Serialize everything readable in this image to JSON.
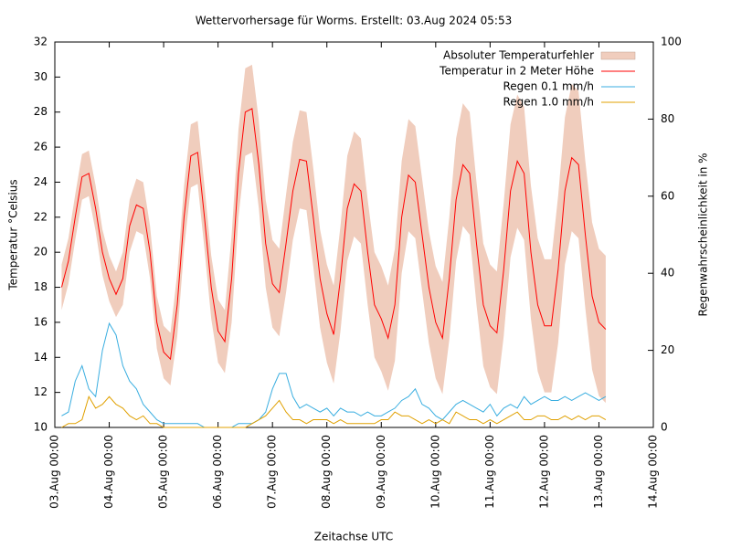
{
  "chart_data": {
    "type": "line",
    "title": "Wettervorhersage für Worms. Erstellt: 03.Aug 2024 05:53",
    "xlabel": "Zeitachse UTC",
    "ylabel": "Temperatur °Celsius",
    "y2label": "Regenwahrscheinlichkeit in %",
    "legend": "top-right",
    "grid": false,
    "xlim": [
      "03.Aug 00:00",
      "14.Aug 00:00"
    ],
    "xticks": [
      "03.Aug 00:00",
      "04.Aug 00:00",
      "05.Aug 00:00",
      "06.Aug 00:00",
      "07.Aug 00:00",
      "08.Aug 00:00",
      "09.Aug 00:00",
      "10.Aug 00:00",
      "11.Aug 00:00",
      "12.Aug 00:00",
      "13.Aug 00:00",
      "14.Aug 00:00"
    ],
    "ylim": [
      10,
      32
    ],
    "yticks": [
      10,
      12,
      14,
      16,
      18,
      20,
      22,
      24,
      26,
      28,
      30,
      32
    ],
    "y2lim": [
      0,
      100
    ],
    "y2ticks": [
      0,
      20,
      40,
      60,
      80,
      100
    ],
    "x": [
      "03.Aug 03:00",
      "03.Aug 06:00",
      "03.Aug 09:00",
      "03.Aug 12:00",
      "03.Aug 15:00",
      "03.Aug 18:00",
      "03.Aug 21:00",
      "04.Aug 00:00",
      "04.Aug 03:00",
      "04.Aug 06:00",
      "04.Aug 09:00",
      "04.Aug 12:00",
      "04.Aug 15:00",
      "04.Aug 18:00",
      "04.Aug 21:00",
      "05.Aug 00:00",
      "05.Aug 03:00",
      "05.Aug 06:00",
      "05.Aug 09:00",
      "05.Aug 12:00",
      "05.Aug 15:00",
      "05.Aug 18:00",
      "05.Aug 21:00",
      "06.Aug 00:00",
      "06.Aug 03:00",
      "06.Aug 06:00",
      "06.Aug 09:00",
      "06.Aug 12:00",
      "06.Aug 15:00",
      "06.Aug 18:00",
      "06.Aug 21:00",
      "07.Aug 00:00",
      "07.Aug 03:00",
      "07.Aug 06:00",
      "07.Aug 09:00",
      "07.Aug 12:00",
      "07.Aug 15:00",
      "07.Aug 18:00",
      "07.Aug 21:00",
      "08.Aug 00:00",
      "08.Aug 03:00",
      "08.Aug 06:00",
      "08.Aug 09:00",
      "08.Aug 12:00",
      "08.Aug 15:00",
      "08.Aug 18:00",
      "08.Aug 21:00",
      "09.Aug 00:00",
      "09.Aug 03:00",
      "09.Aug 06:00",
      "09.Aug 09:00",
      "09.Aug 12:00",
      "09.Aug 15:00",
      "09.Aug 18:00",
      "09.Aug 21:00",
      "10.Aug 00:00",
      "10.Aug 03:00",
      "10.Aug 06:00",
      "10.Aug 09:00",
      "10.Aug 12:00",
      "10.Aug 15:00",
      "10.Aug 18:00",
      "10.Aug 21:00",
      "11.Aug 00:00",
      "11.Aug 03:00",
      "11.Aug 06:00",
      "11.Aug 09:00",
      "11.Aug 12:00",
      "11.Aug 15:00",
      "11.Aug 18:00",
      "11.Aug 21:00",
      "12.Aug 00:00",
      "12.Aug 03:00",
      "12.Aug 06:00",
      "12.Aug 09:00",
      "12.Aug 12:00",
      "12.Aug 15:00",
      "12.Aug 18:00",
      "12.Aug 21:00",
      "13.Aug 00:00",
      "13.Aug 03:00"
    ],
    "series": [
      {
        "name": "Absoluter Temperaturfehler",
        "color": "#f0cdbd",
        "low": [
          16.7,
          18.2,
          20.7,
          23,
          23.2,
          21.2,
          18.7,
          17.2,
          16.3,
          17,
          20,
          21.2,
          21,
          18.5,
          14.5,
          12.8,
          12.4,
          15.2,
          20.2,
          23.7,
          23.9,
          20.2,
          16.2,
          13.7,
          13.1,
          16,
          22,
          25.5,
          25.7,
          22.5,
          18,
          15.7,
          15.2,
          17.7,
          20.7,
          22.5,
          22.4,
          19.2,
          15.7,
          13.7,
          12.5,
          15.5,
          19.5,
          20.9,
          20.5,
          17,
          14,
          13.2,
          12.1,
          13.8,
          18.8,
          21.2,
          20.8,
          17.8,
          14.8,
          12.8,
          11.9,
          15,
          19.5,
          21.5,
          21,
          17,
          13.5,
          12.3,
          11.9,
          15.2,
          19.7,
          21.4,
          20.7,
          16.2,
          13.2,
          12,
          12,
          14.8,
          19.3,
          21.2,
          20.8,
          16.8,
          13.3,
          11.8,
          11.4
        ],
        "high": [
          19.3,
          20.8,
          23.3,
          25.6,
          25.8,
          23.8,
          21.3,
          19.8,
          18.9,
          20,
          23,
          24.2,
          24,
          21.5,
          17.5,
          15.8,
          15.4,
          18.8,
          23.8,
          27.3,
          27.5,
          23.8,
          19.8,
          17.3,
          16.7,
          21,
          27,
          30.5,
          30.7,
          27.5,
          23,
          20.7,
          20.2,
          23.3,
          26.3,
          28.1,
          28,
          24.8,
          21.3,
          19.3,
          18.1,
          21.5,
          25.5,
          26.9,
          26.5,
          23,
          20,
          19.2,
          18.1,
          20.2,
          25.2,
          27.6,
          27.2,
          24.2,
          21.2,
          19.2,
          18.3,
          22,
          26.5,
          28.5,
          28,
          24,
          20.5,
          19.3,
          18.9,
          22.8,
          27.3,
          29,
          28.3,
          23.8,
          20.8,
          19.6,
          19.6,
          23.2,
          27.7,
          29.6,
          29.2,
          25.2,
          21.7,
          20.2,
          19.8
        ]
      },
      {
        "name": "Temperatur in 2 Meter Höhe",
        "color": "#ff0000",
        "values": [
          18,
          19.5,
          22,
          24.3,
          24.5,
          22.5,
          20,
          18.5,
          17.6,
          18.5,
          21.5,
          22.7,
          22.5,
          20,
          16,
          14.3,
          13.9,
          17,
          22,
          25.5,
          25.7,
          22,
          18,
          15.5,
          14.9,
          18.5,
          24.5,
          28,
          28.2,
          25,
          20.5,
          18.2,
          17.7,
          20.5,
          23.5,
          25.3,
          25.2,
          22,
          18.5,
          16.5,
          15.3,
          18.5,
          22.5,
          23.9,
          23.5,
          20,
          17,
          16.2,
          15.1,
          17,
          22,
          24.4,
          24,
          21,
          18,
          16,
          15.1,
          18.5,
          23,
          25,
          24.5,
          20.5,
          17,
          15.8,
          15.4,
          19,
          23.5,
          25.2,
          24.5,
          20,
          17,
          15.8,
          15.8,
          19,
          23.5,
          25.4,
          25,
          21,
          17.5,
          16,
          15.6
        ]
      },
      {
        "name": "Regen 0.1 mm/h",
        "color": "#3aaee0",
        "axis": "y2",
        "values": [
          3,
          4,
          12,
          16,
          10,
          8,
          20,
          27,
          24,
          16,
          12,
          10,
          6,
          4,
          2,
          1,
          1,
          1,
          1,
          1,
          1,
          0,
          0,
          0,
          0,
          0,
          1,
          1,
          1,
          2,
          4,
          10,
          14,
          14,
          8,
          5,
          6,
          5,
          4,
          5,
          3,
          5,
          4,
          4,
          3,
          4,
          3,
          3,
          4,
          5,
          7,
          8,
          10,
          6,
          5,
          3,
          2,
          4,
          6,
          7,
          6,
          5,
          4,
          6,
          3,
          5,
          6,
          5,
          8,
          6,
          7,
          8,
          7,
          7,
          8,
          7,
          8,
          9,
          8,
          7,
          8
        ]
      },
      {
        "name": "Regen 1.0 mm/h",
        "color": "#e0a000",
        "axis": "y2",
        "values": [
          0,
          1,
          1,
          2,
          8,
          5,
          6,
          8,
          6,
          5,
          3,
          2,
          3,
          1,
          1,
          0,
          0,
          0,
          0,
          0,
          0,
          0,
          0,
          0,
          0,
          0,
          0,
          0,
          1,
          2,
          3,
          5,
          7,
          4,
          2,
          2,
          1,
          2,
          2,
          2,
          1,
          2,
          1,
          1,
          1,
          1,
          1,
          2,
          2,
          4,
          3,
          3,
          2,
          1,
          2,
          1,
          2,
          1,
          4,
          3,
          2,
          2,
          1,
          2,
          1,
          2,
          3,
          4,
          2,
          2,
          3,
          3,
          2,
          2,
          3,
          2,
          3,
          2,
          3,
          3,
          2
        ]
      }
    ]
  }
}
